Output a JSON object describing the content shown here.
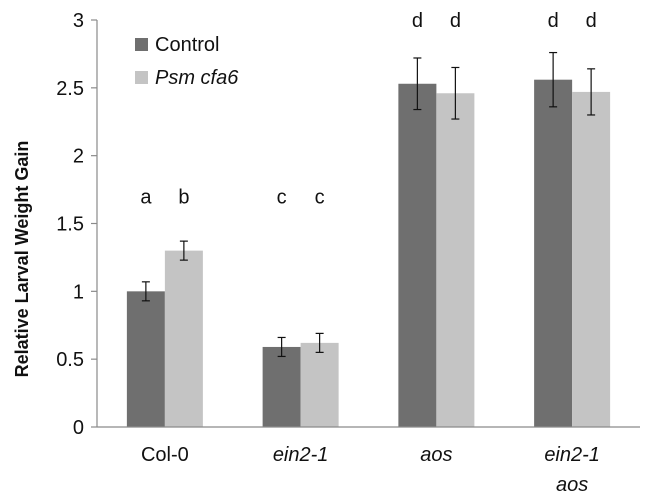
{
  "chart_data": {
    "type": "bar",
    "title": "",
    "xlabel": "",
    "ylabel": "Relative Larval Weight Gain",
    "ylim": [
      0,
      3
    ],
    "yticks": [
      "0",
      "0.5",
      "1",
      "1.5",
      "2",
      "2.5",
      "3"
    ],
    "grid": false,
    "legend_position": "top-left",
    "categories": [
      {
        "lines": [
          "Col-0"
        ],
        "italic": false
      },
      {
        "lines": [
          "ein2-1"
        ],
        "italic": true
      },
      {
        "lines": [
          "aos"
        ],
        "italic": true
      },
      {
        "lines": [
          "ein2-1",
          "aos"
        ],
        "italic": true
      }
    ],
    "series": [
      {
        "name": "Control",
        "italic": false,
        "color": "#6f6f6f",
        "values": [
          1.0,
          0.59,
          2.53,
          2.56
        ],
        "errors": [
          0.07,
          0.07,
          0.19,
          0.2
        ],
        "significance": [
          "a",
          "c",
          "d",
          "d"
        ]
      },
      {
        "name": "Psm cfa6",
        "italic": true,
        "color": "#c4c4c4",
        "values": [
          1.3,
          0.62,
          2.46,
          2.47
        ],
        "errors": [
          0.07,
          0.07,
          0.19,
          0.17
        ],
        "significance": [
          "b",
          "c",
          "d",
          "d"
        ]
      }
    ]
  }
}
